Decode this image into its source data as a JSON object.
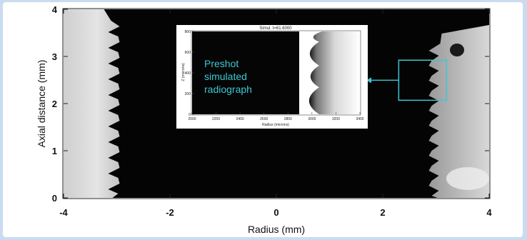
{
  "chart_data": [
    {
      "type": "image-plot",
      "xlabel": "Radius (mm)",
      "ylabel": "Axial distance (mm)",
      "xlim": [
        -4,
        4
      ],
      "ylim": [
        0,
        4
      ],
      "x_ticks": [
        -4,
        -2,
        0,
        2,
        4
      ],
      "x_tick_labels": [
        "-4",
        "-2",
        "0",
        "2",
        "4"
      ],
      "y_ticks": [
        0,
        1,
        2,
        3,
        4
      ],
      "y_tick_labels": [
        "0",
        "1",
        "2",
        "3",
        "4"
      ],
      "left_interface_x": -3,
      "right_interface_x": 3,
      "highlight_box": {
        "x": [
          2.3,
          3.2
        ],
        "y": [
          2.07,
          2.92
        ],
        "color": "#3ec8d3"
      }
    },
    {
      "type": "image-plot",
      "title": "Simul. t=61.6000",
      "xlabel": "Radius (microns)",
      "ylabel": "Z (microns)",
      "xlim": [
        2000,
        3400
      ],
      "ylim": [
        0,
        800
      ],
      "x_ticks": [
        2000,
        2200,
        2400,
        2600,
        2800,
        3000,
        3200,
        3400
      ],
      "x_tick_labels": [
        "2000",
        "2200",
        "2400",
        "2600",
        "2800",
        "3000",
        "3200",
        "3400"
      ],
      "y_ticks": [
        0,
        200,
        400,
        600,
        800
      ],
      "y_tick_labels": [
        "0",
        "200",
        "400",
        "600",
        "800"
      ],
      "caption": [
        "Preshot",
        "simulated",
        "radiograph"
      ]
    }
  ]
}
